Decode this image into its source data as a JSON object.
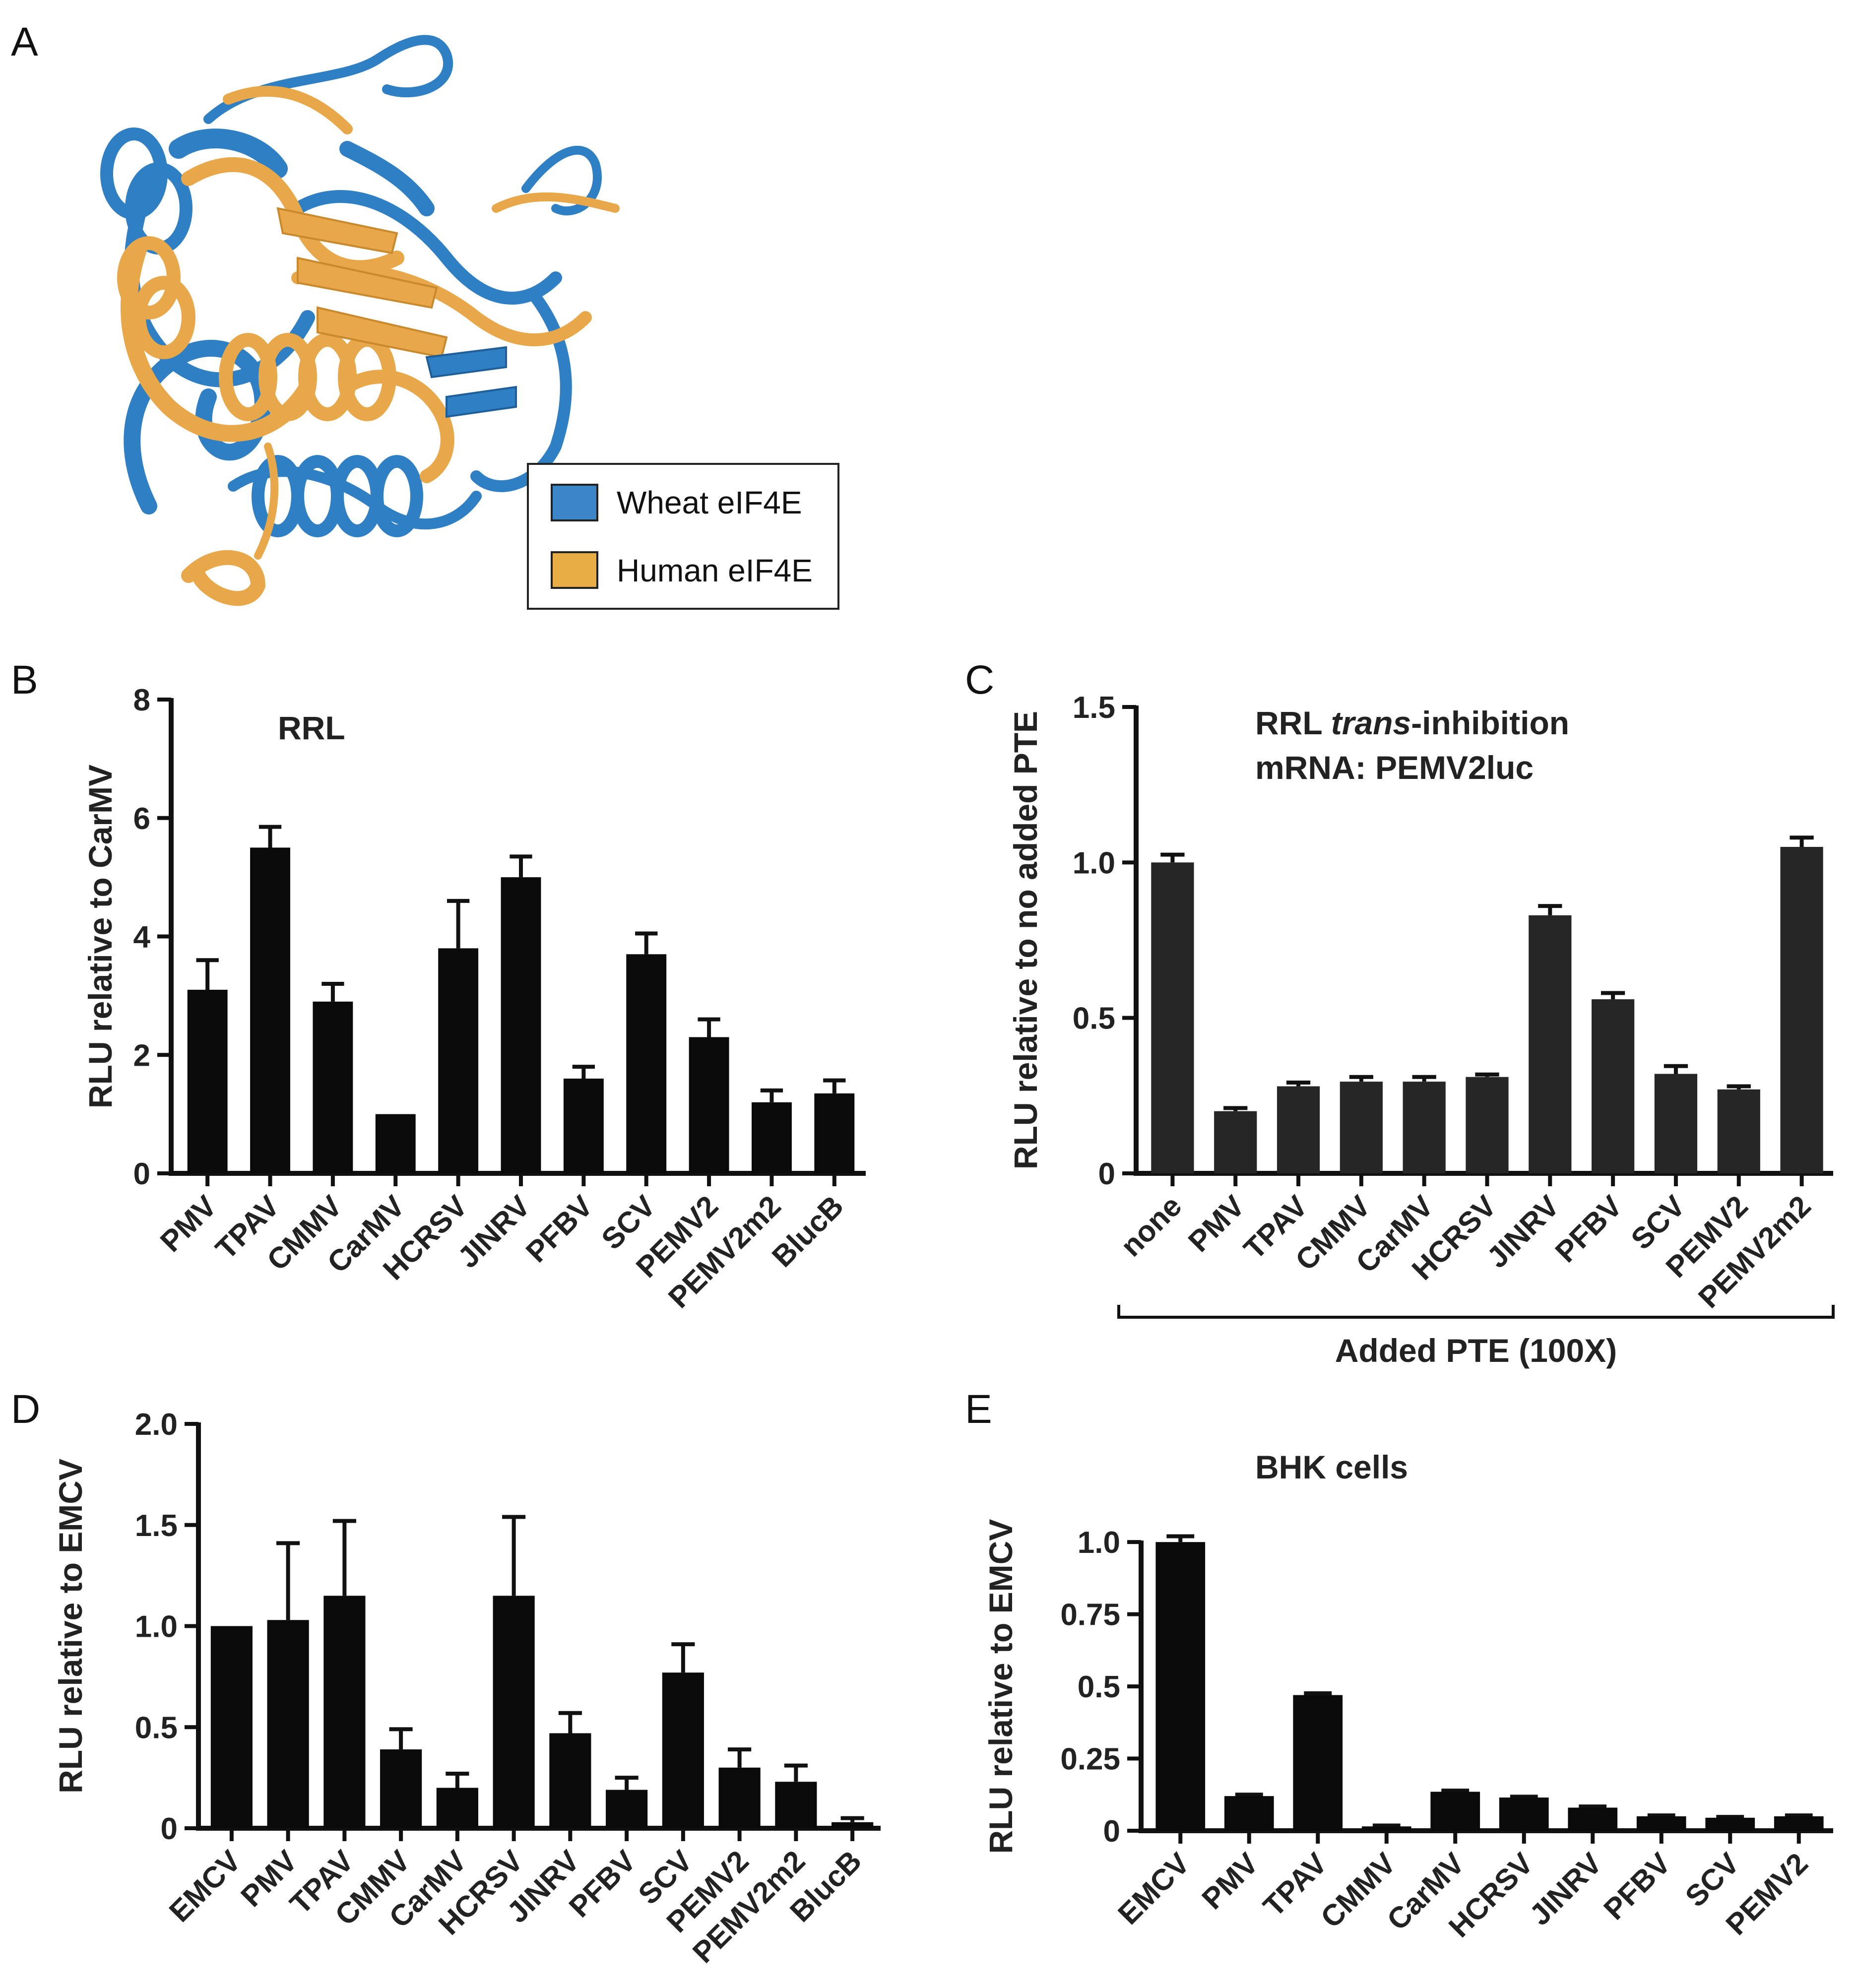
{
  "panel_labels": {
    "A": "A",
    "B": "B",
    "C": "C",
    "D": "D",
    "E": "E"
  },
  "legend": {
    "items": [
      {
        "label": "Wheat eIF4E",
        "color": "#3a86c8"
      },
      {
        "label": "Human eIF4E",
        "color": "#e8ae45"
      }
    ]
  },
  "colors": {
    "bar_black": "#0a0a0a",
    "bar_dark": "#262626",
    "wheat": "#2f7fc4",
    "human": "#e8a84a"
  },
  "chart_data": [
    {
      "id": "B",
      "type": "bar",
      "title": "RRL",
      "ylabel": "RLU relative to CarMV",
      "ylim": [
        0,
        8
      ],
      "yticks": [
        0,
        2,
        4,
        6,
        8
      ],
      "ytick_labels": [
        "0",
        "2",
        "4",
        "6",
        "8"
      ],
      "categories": [
        "PMV",
        "TPAV",
        "CMMV",
        "CarMV",
        "HCRSV",
        "JINRV",
        "PFBV",
        "SCV",
        "PEMV2",
        "PEMV2m2",
        "BlucB"
      ],
      "values": [
        3.1,
        5.5,
        2.9,
        1.0,
        3.8,
        5.0,
        1.6,
        3.7,
        2.3,
        1.2,
        1.35
      ],
      "errors": [
        0.5,
        0.35,
        0.3,
        0.0,
        0.8,
        0.35,
        0.2,
        0.35,
        0.3,
        0.2,
        0.22
      ]
    },
    {
      "id": "C",
      "type": "bar",
      "title_parts": [
        "RRL ",
        "trans",
        "-inhibition"
      ],
      "subtitle": "mRNA: PEMV2luc",
      "ylabel": "RLU relative to no added PTE",
      "xlabel": "Added PTE (100X)",
      "ylim": [
        0,
        1.5
      ],
      "yticks": [
        0,
        0.5,
        1.0,
        1.5
      ],
      "ytick_labels": [
        "0",
        "0.5",
        "1.0",
        "1.5"
      ],
      "categories": [
        "none",
        "PMV",
        "TPAV",
        "CMMV",
        "CarMV",
        "HCRSV",
        "JINRV",
        "PFBV",
        "SCV",
        "PEMV2",
        "PEMV2m2"
      ],
      "values": [
        1.0,
        0.2,
        0.28,
        0.295,
        0.295,
        0.31,
        0.83,
        0.56,
        0.32,
        0.27,
        1.05
      ],
      "errors": [
        0.025,
        0.01,
        0.012,
        0.015,
        0.015,
        0.008,
        0.03,
        0.02,
        0.025,
        0.01,
        0.03
      ]
    },
    {
      "id": "D",
      "type": "bar",
      "title": "",
      "ylabel": "RLU relative to EMCV",
      "ylim": [
        0,
        2.0
      ],
      "yticks": [
        0,
        0.5,
        1.0,
        1.5,
        2.0
      ],
      "ytick_labels": [
        "0",
        "0.5",
        "1.0",
        "1.5",
        "2.0"
      ],
      "categories": [
        "EMCV",
        "PMV",
        "TPAV",
        "CMMV",
        "CarMV",
        "HCRSV",
        "JINRV",
        "PFBV",
        "SCV",
        "PEMV2",
        "PEMV2m2",
        "BlucB"
      ],
      "values": [
        1.0,
        1.03,
        1.15,
        0.39,
        0.2,
        1.15,
        0.47,
        0.19,
        0.77,
        0.3,
        0.23,
        0.03
      ],
      "errors": [
        0.0,
        0.38,
        0.37,
        0.1,
        0.07,
        0.39,
        0.1,
        0.06,
        0.14,
        0.09,
        0.08,
        0.02
      ]
    },
    {
      "id": "E",
      "type": "bar",
      "title": "BHK cells",
      "ylabel": "RLU relative to EMCV",
      "ylim": [
        0,
        1.1
      ],
      "yticks": [
        0,
        0.25,
        0.5,
        0.75,
        1.0
      ],
      "ytick_labels": [
        "0",
        "0.25",
        "0.5",
        "0.75",
        "1.0"
      ],
      "categories": [
        "EMCV",
        "PMV",
        "TPAV",
        "CMMV",
        "CarMV",
        "HCRSV",
        "JINRV",
        "PFBV",
        "SCV",
        "PEMV2"
      ],
      "values": [
        1.0,
        0.12,
        0.47,
        0.015,
        0.135,
        0.115,
        0.08,
        0.05,
        0.045,
        0.05
      ],
      "errors": [
        0.02,
        0.005,
        0.006,
        0.003,
        0.004,
        0.003,
        0.004,
        0.003,
        0.003,
        0.003
      ]
    }
  ]
}
